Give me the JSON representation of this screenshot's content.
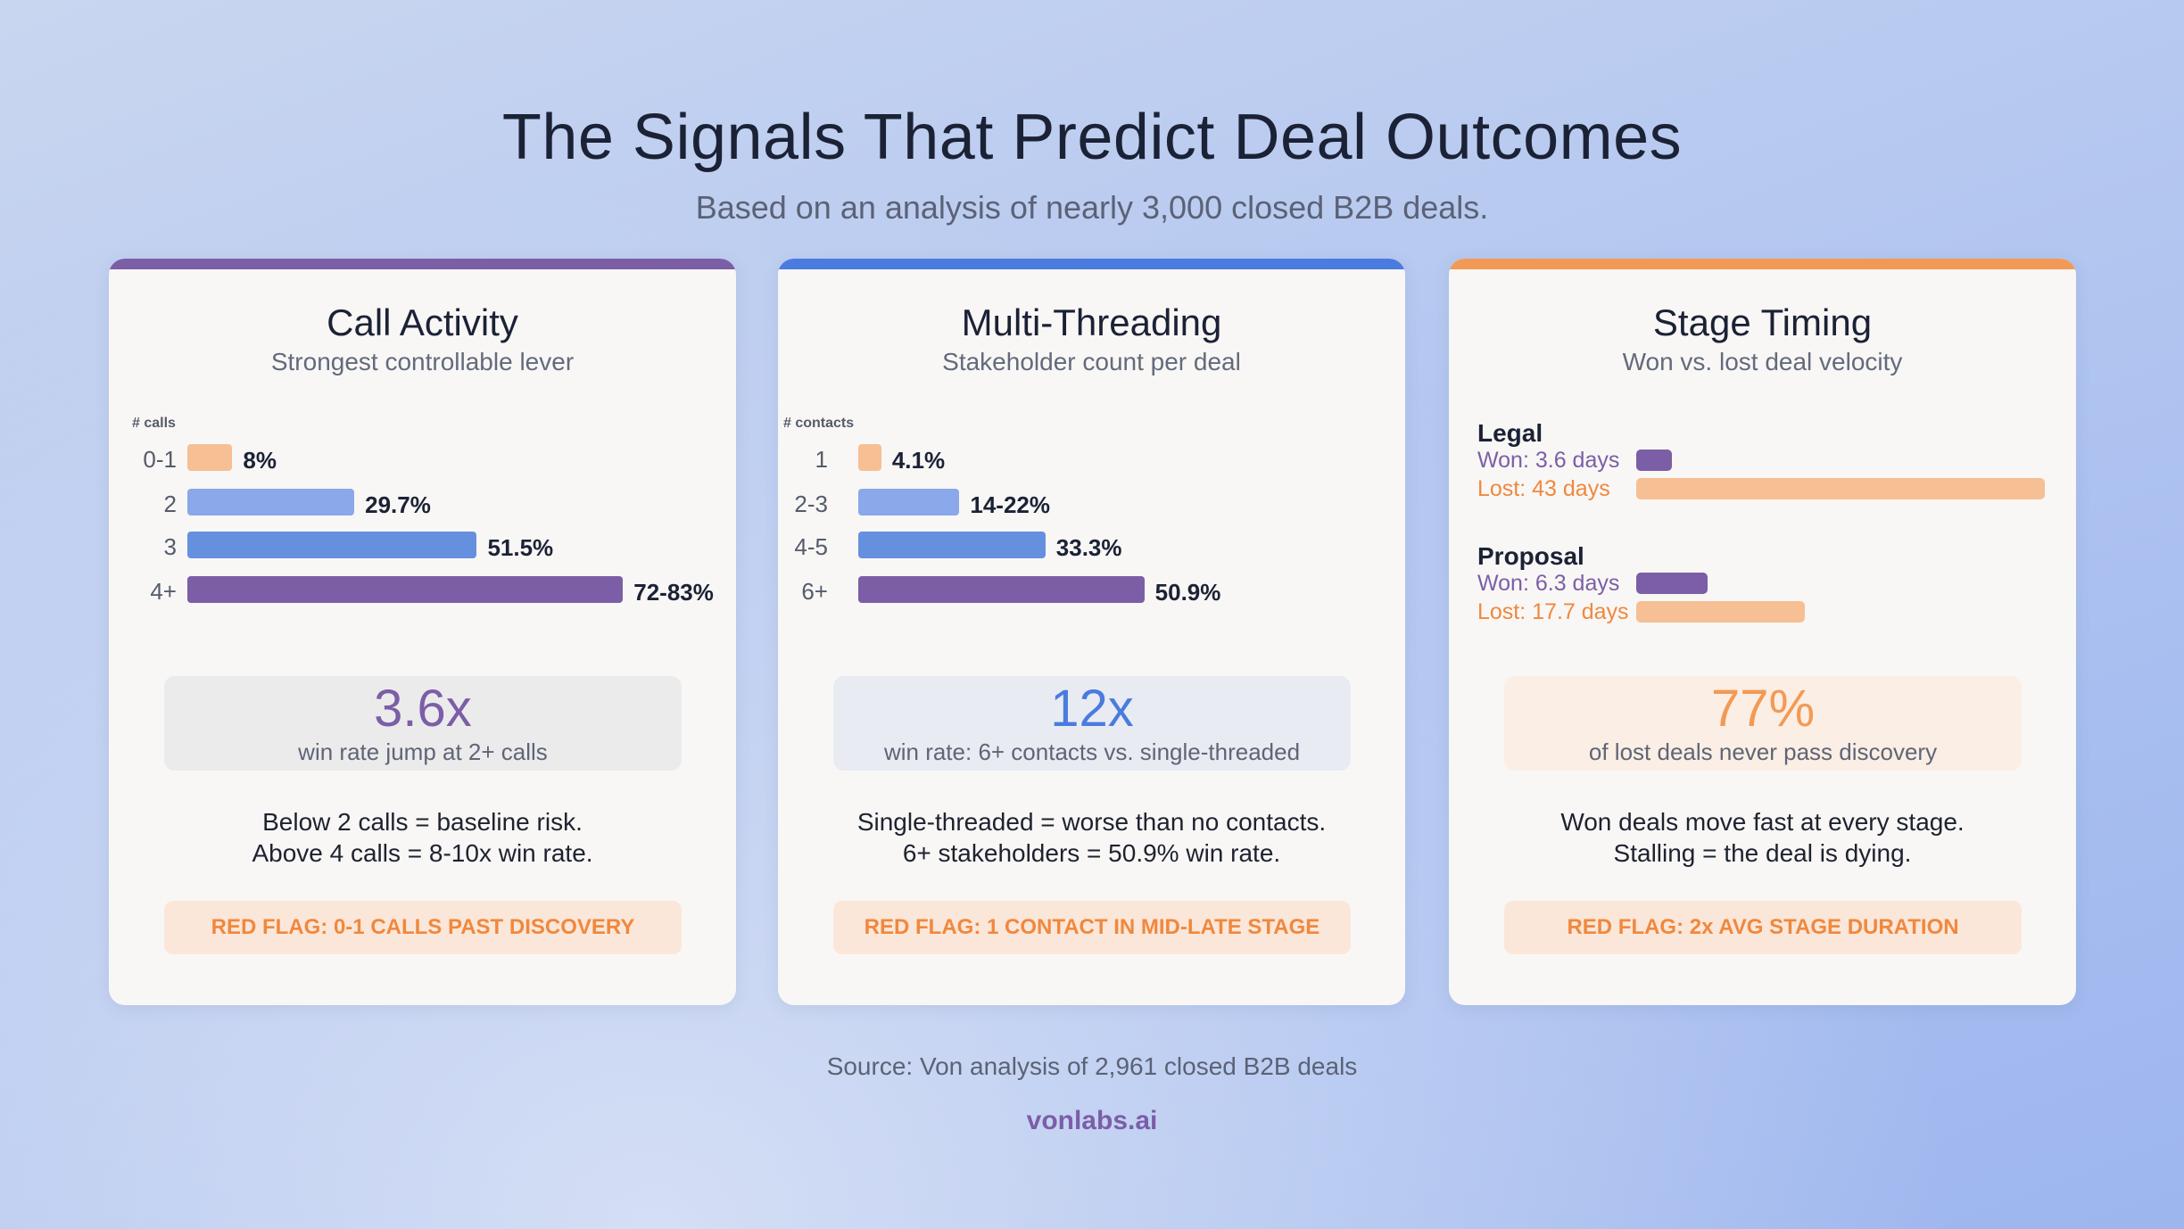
{
  "header": {
    "title": "The Signals That Predict Deal Outcomes",
    "subtitle": "Based on an analysis of nearly 3,000 closed B2B deals."
  },
  "colors": {
    "purple": "#7c5ea7",
    "blue": "#4a7bdf",
    "orange": "#f29a55",
    "peach": "#f7bf94",
    "light_blue": "#8aa8ea",
    "mid_blue": "#6590e0",
    "red_flag_text": "#f0883e"
  },
  "cards": [
    {
      "title": "Call Activity",
      "subtitle": "Strongest controllable lever",
      "stat_value": "3.6x",
      "stat_label": "win rate jump at 2+ calls",
      "desc_line1": "Below 2 calls = baseline risk.",
      "desc_line2": "Above 4 calls = 8-10x win rate.",
      "red_flag": "RED FLAG: 0-1 CALLS PAST DISCOVERY"
    },
    {
      "title": "Multi-Threading",
      "subtitle": "Stakeholder count per deal",
      "stat_value": "12x",
      "stat_label": "win rate: 6+ contacts vs. single-threaded",
      "desc_line1": "Single-threaded = worse than no contacts.",
      "desc_line2": "6+ stakeholders = 50.9% win rate.",
      "red_flag": "RED FLAG: 1 CONTACT IN MID-LATE STAGE"
    },
    {
      "title": "Stage Timing",
      "subtitle": "Won vs. lost deal velocity",
      "stat_value": "77%",
      "stat_label": "of lost deals never pass discovery",
      "desc_line1": "Won deals move fast at every stage.",
      "desc_line2": "Stalling = the deal is dying.",
      "red_flag": "RED FLAG: 2x AVG STAGE DURATION"
    }
  ],
  "chart_data": [
    {
      "type": "bar",
      "orientation": "horizontal",
      "ylabel": "# calls",
      "categories": [
        "0-1",
        "2",
        "3",
        "4+"
      ],
      "values": [
        8,
        29.7,
        51.5,
        77.5
      ],
      "value_labels": [
        "8%",
        "29.7%",
        "51.5%",
        "72-83%"
      ]
    },
    {
      "type": "bar",
      "orientation": "horizontal",
      "ylabel": "# contacts",
      "categories": [
        "1",
        "2-3",
        "4-5",
        "6+"
      ],
      "values": [
        4.1,
        18,
        33.3,
        50.9
      ],
      "value_labels": [
        "4.1%",
        "14-22%",
        "33.3%",
        "50.9%"
      ]
    },
    {
      "type": "bar",
      "orientation": "horizontal",
      "stages": [
        {
          "name": "Legal",
          "won_label": "Won: 3.6 days",
          "won": 3.6,
          "lost_label": "Lost: 43 days",
          "lost": 43
        },
        {
          "name": "Proposal",
          "won_label": "Won: 6.3 days",
          "won": 6.3,
          "lost_label": "Lost: 17.7 days",
          "lost": 17.7
        }
      ]
    }
  ],
  "footer": {
    "source": "Source: Von analysis of 2,961 closed B2B deals",
    "brand": "vonlabs.ai"
  }
}
